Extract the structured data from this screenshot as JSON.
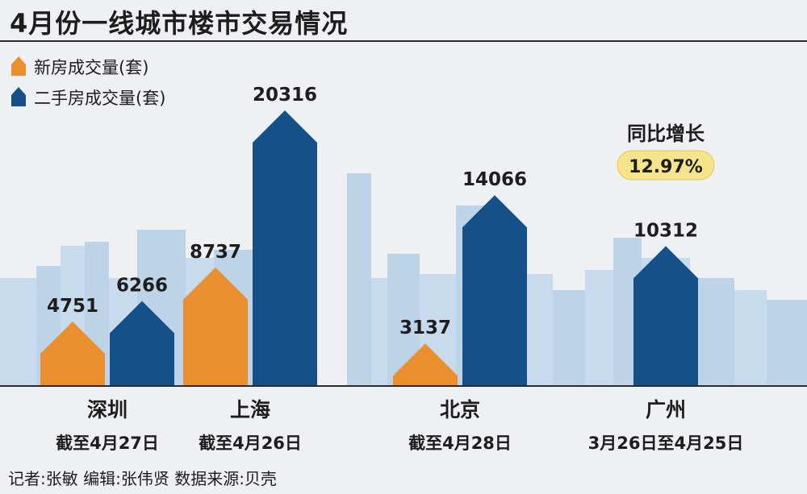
{
  "title": "4月份一线城市楼市交易情况",
  "footer": "记者:张敏   编辑:张伟贤   数据来源:贝壳",
  "chart_data": {
    "type": "bar",
    "series": [
      {
        "name": "新房成交量(套)",
        "color": "#e98f2f",
        "values": [
          4751,
          8737,
          3137,
          null
        ]
      },
      {
        "name": "二手房成交量(套)",
        "color": "#155089",
        "values": [
          6266,
          20316,
          14066,
          10312
        ]
      }
    ],
    "categories": [
      "深圳",
      "上海",
      "北京",
      "广州"
    ],
    "date_ranges": [
      "截至4月27日",
      "截至4月26日",
      "截至4月28日",
      "3月26日至4月25日"
    ],
    "value_labels": [
      [
        "4751",
        "6266"
      ],
      [
        "8737",
        "20316"
      ],
      [
        "3137",
        "14066"
      ],
      [
        null,
        "10312"
      ]
    ],
    "annotation": {
      "label": "同比增长",
      "value": "12.97%",
      "category": "广州"
    },
    "legend_position": "top-left"
  }
}
